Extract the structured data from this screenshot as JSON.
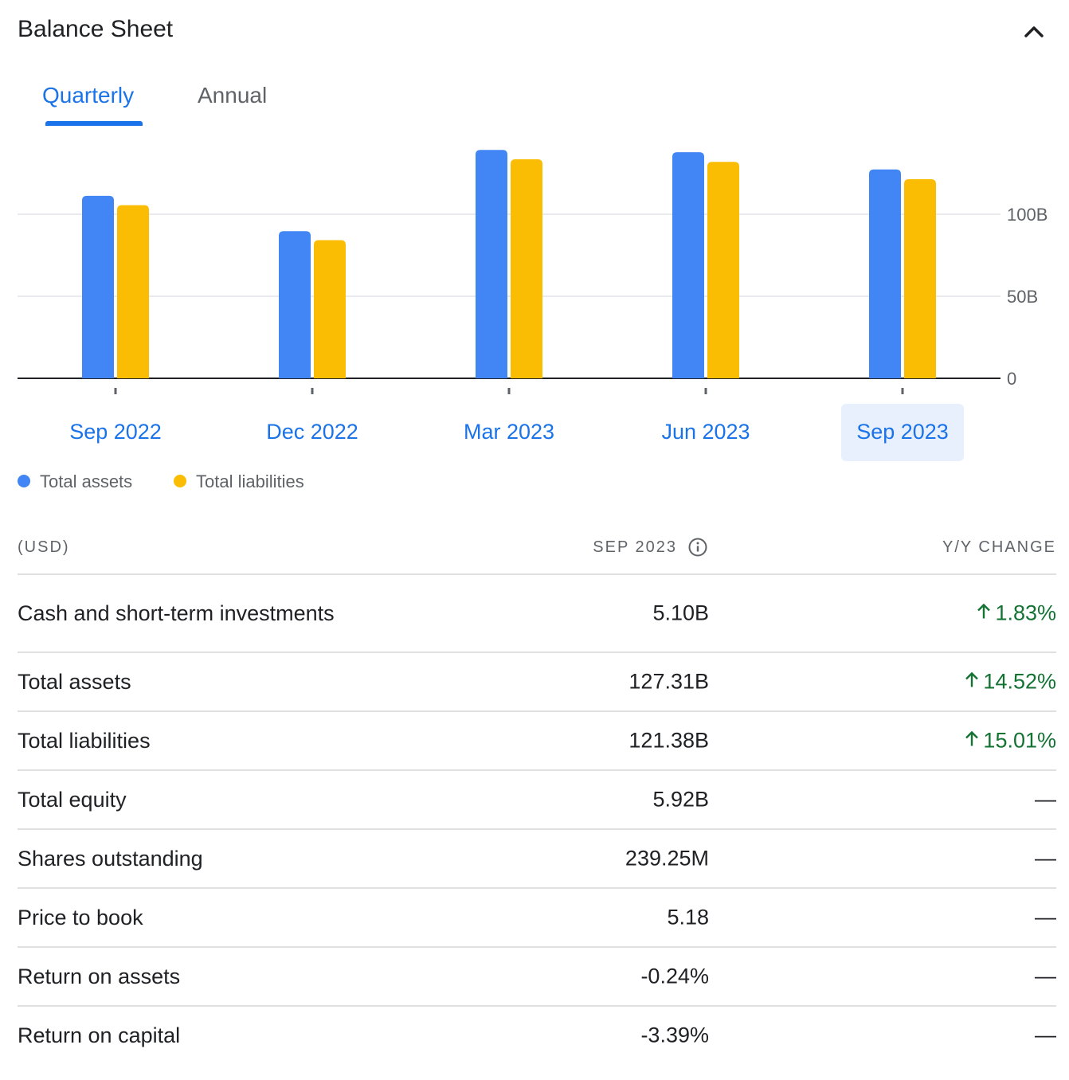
{
  "header": {
    "title": "Balance Sheet",
    "collapse_icon": "chevron-up-icon"
  },
  "tabs": [
    {
      "label": "Quarterly",
      "active": true
    },
    {
      "label": "Annual",
      "active": false
    }
  ],
  "colors": {
    "accent": "#1a73e8",
    "assets": "#4285f4",
    "liabilities": "#fbbc04",
    "positive": "#137333",
    "selected_bg": "#e8f0fe"
  },
  "chart_data": {
    "type": "bar",
    "categories": [
      "Sep 2022",
      "Dec 2022",
      "Mar 2023",
      "Jun 2023",
      "Sep 2023"
    ],
    "series": [
      {
        "name": "Total assets",
        "values": [
          111.2,
          89.7,
          139.2,
          137.8,
          127.31
        ],
        "color": "#4285f4"
      },
      {
        "name": "Total liabilities",
        "values": [
          105.5,
          84.2,
          133.5,
          131.9,
          121.38
        ],
        "color": "#fbbc04"
      }
    ],
    "yticks": [
      {
        "value": 0,
        "label": "0"
      },
      {
        "value": 50,
        "label": "50B"
      },
      {
        "value": 100,
        "label": "100B"
      }
    ],
    "ylim": [
      0,
      140
    ],
    "selected_category": "Sep 2023",
    "grid": true,
    "legend_position": "bottom-left",
    "y_axis_side": "right"
  },
  "legend": [
    {
      "label": "Total assets",
      "color": "#4285f4"
    },
    {
      "label": "Total liabilities",
      "color": "#fbbc04"
    }
  ],
  "table": {
    "headers": {
      "label": "(USD)",
      "period": "SEP 2023",
      "change": "Y/Y CHANGE"
    },
    "rows": [
      {
        "label": "Cash and short-term investments",
        "value": "5.10B",
        "change": "1.83%",
        "direction": "up"
      },
      {
        "label": "Total assets",
        "value": "127.31B",
        "change": "14.52%",
        "direction": "up"
      },
      {
        "label": "Total liabilities",
        "value": "121.38B",
        "change": "15.01%",
        "direction": "up"
      },
      {
        "label": "Total equity",
        "value": "5.92B",
        "change": "—",
        "direction": "none"
      },
      {
        "label": "Shares outstanding",
        "value": "239.25M",
        "change": "—",
        "direction": "none"
      },
      {
        "label": "Price to book",
        "value": "5.18",
        "change": "—",
        "direction": "none"
      },
      {
        "label": "Return on assets",
        "value": "-0.24%",
        "change": "—",
        "direction": "none"
      },
      {
        "label": "Return on capital",
        "value": "-3.39%",
        "change": "—",
        "direction": "none"
      }
    ]
  }
}
